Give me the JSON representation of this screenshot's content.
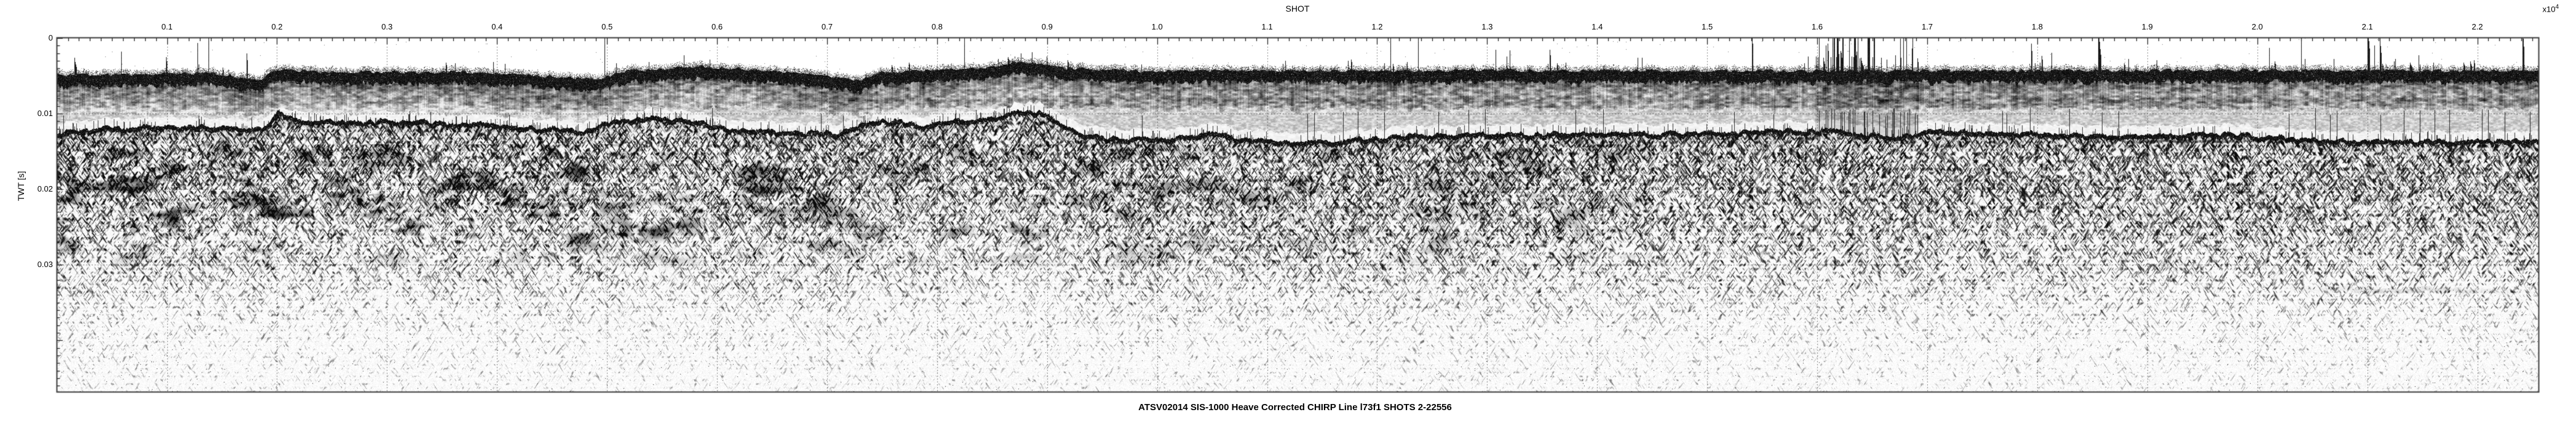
{
  "figure": {
    "title": "ATSV02014 SIS-1000 Heave Corrected CHIRP Line l73f1 SHOTS 2-22556",
    "x_axis": {
      "label": "SHOT",
      "multiplier_base": "x10",
      "multiplier_exponent": "4",
      "tick_labels": [
        "0.1",
        "0.2",
        "0.3",
        "0.4",
        "0.5",
        "0.6",
        "0.7",
        "0.8",
        "0.9",
        "1.0",
        "1.1",
        "1.2",
        "1.3",
        "1.4",
        "1.5",
        "1.6",
        "1.7",
        "1.8",
        "1.9",
        "2.0",
        "2.1",
        "2.2"
      ],
      "tick_values_e4": [
        0.1,
        0.2,
        0.3,
        0.4,
        0.5,
        0.6,
        0.7,
        0.8,
        0.9,
        1.0,
        1.1,
        1.2,
        1.3,
        1.4,
        1.5,
        1.6,
        1.7,
        1.8,
        1.9,
        2.0,
        2.1,
        2.2
      ],
      "minor_tick_step_e4": 0.01,
      "range_e4": [
        0.0002,
        2.2556
      ]
    },
    "y_axis": {
      "label": "TWT [s]",
      "tick_labels": [
        "0",
        "0.01",
        "0.02",
        "0.03"
      ],
      "tick_values_s": [
        0,
        0.01,
        0.02,
        0.03
      ],
      "minor_tick_step_s": 0.001,
      "range_s": [
        0,
        0.0468
      ]
    },
    "colors": {
      "background": "#ffffff",
      "ink": "#000000",
      "border": "#3c3c3c",
      "grid": "#606060"
    }
  },
  "chart_data": {
    "type": "heatmap",
    "kind": "sub-bottom-chirp-seismic-profile",
    "grayscale": true,
    "title": "ATSV02014 SIS-1000 Heave Corrected CHIRP Line l73f1 SHOTS 2-22556",
    "xlabel": "SHOT",
    "x_multiplier": "x10^4",
    "ylabel": "TWT [s]",
    "shot_range": [
      2,
      22556
    ],
    "x_range_e4": [
      0.0002,
      2.2556
    ],
    "y_range_s": [
      0,
      0.0468
    ],
    "grid": "dotted-at-major-ticks",
    "seafloor_reflector": {
      "shot_e4": [
        0.0,
        0.032,
        0.088,
        0.144,
        0.186,
        0.201,
        0.217,
        0.261,
        0.312,
        0.367,
        0.423,
        0.479,
        0.507,
        0.546,
        0.585,
        0.611,
        0.675,
        0.708,
        0.736,
        0.767,
        0.787,
        0.812,
        0.843,
        0.882,
        0.901,
        0.929,
        0.954,
        1.01,
        1.049,
        1.088,
        1.133,
        1.178,
        1.222,
        1.317,
        1.429,
        1.513,
        1.569,
        1.625,
        1.67,
        1.703,
        1.765,
        1.837,
        1.905,
        1.96,
        2.016,
        2.055,
        2.128,
        2.2,
        2.256
      ],
      "twt_s": [
        0.01259,
        0.01203,
        0.0117,
        0.01178,
        0.01211,
        0.00967,
        0.01089,
        0.01113,
        0.01105,
        0.0113,
        0.01186,
        0.01219,
        0.01089,
        0.01064,
        0.01097,
        0.01219,
        0.01251,
        0.01268,
        0.01113,
        0.01097,
        0.01154,
        0.01097,
        0.01073,
        0.00951,
        0.01024,
        0.01251,
        0.01333,
        0.01341,
        0.01259,
        0.01357,
        0.01373,
        0.01349,
        0.01292,
        0.01276,
        0.01268,
        0.01251,
        0.01219,
        0.01235,
        0.01316,
        0.01235,
        0.01243,
        0.01284,
        0.01292,
        0.01276,
        0.01308,
        0.01357,
        0.01365,
        0.01365,
        0.01357
      ]
    },
    "direct_arrival_band": {
      "shot_e4": [
        0.0,
        0.144,
        0.183,
        0.2,
        0.239,
        0.391,
        0.493,
        0.513,
        0.585,
        0.647,
        0.728,
        0.747,
        0.843,
        0.873,
        0.915,
        0.982,
        1.29,
        1.625,
        1.96,
        2.256
      ],
      "twt_s": [
        0.00487,
        0.00463,
        0.00569,
        0.00406,
        0.00447,
        0.00447,
        0.00552,
        0.00439,
        0.00374,
        0.00423,
        0.00561,
        0.00447,
        0.0039,
        0.00309,
        0.0039,
        0.00431,
        0.00423,
        0.00431,
        0.00423,
        0.00431
      ],
      "solid_thickness_s": 0.0014,
      "reverb_bottom_s": 0.0098
    },
    "noise_spike_zones": [
      {
        "x_e4": [
          1.598,
          1.692
        ],
        "intensity": "strong"
      },
      {
        "x_e4": [
          0.05,
          0.14
        ],
        "intensity": "mild"
      },
      {
        "x_e4": [
          0.545,
          0.605
        ],
        "intensity": "mild"
      },
      {
        "x_e4": [
          1.76,
          1.93
        ],
        "intensity": "mild"
      },
      {
        "x_e4": [
          2.0,
          2.25
        ],
        "intensity": "mild"
      }
    ],
    "sub_bottom_features": [
      {
        "name": "dipping-reflector",
        "x_e4": [
          1.199,
          1.252
        ],
        "twt_s": [
          0.0147,
          0.0218
        ]
      },
      {
        "name": "dipping-streak-left-a",
        "x_e4": [
          0.076,
          0.205
        ],
        "twt_s": [
          0.0168,
          0.0177
        ]
      },
      {
        "name": "dipping-streak-left-b",
        "x_e4": [
          0.026,
          0.104
        ],
        "twt_s": [
          0.0193,
          0.0203
        ]
      },
      {
        "name": "dipping-streak-mid",
        "x_e4": [
          0.227,
          0.34
        ],
        "twt_s": [
          0.0193,
          0.0218
        ]
      },
      {
        "name": "dipping-streak-right",
        "x_e4": [
          1.507,
          1.547
        ],
        "twt_s": [
          0.0153,
          0.0193
        ]
      },
      {
        "name": "sub-parallel-reflector",
        "x_e4": [
          1.828,
          2.048
        ],
        "twt_s": [
          0.01365,
          0.01368
        ]
      },
      {
        "name": "deep-smear-right",
        "x_e4": [
          2.02,
          2.25
        ],
        "twt_s": [
          0.0332,
          0.0336
        ]
      }
    ],
    "chaotic_scatter_zones": {
      "twt_s": [
        0.014,
        0.031
      ],
      "zones": [
        {
          "x_e4": [
            0.0,
            0.48
          ],
          "strength": 0.95
        },
        {
          "x_e4": [
            0.48,
            0.98
          ],
          "strength": 0.7
        },
        {
          "x_e4": [
            0.98,
            1.45
          ],
          "strength": 0.45
        }
      ]
    },
    "water_column_stripe": {
      "ranges_e4": [
        [
          0.0,
          0.39
        ],
        [
          0.39,
          0.78
        ],
        [
          0.78,
          2.256
        ]
      ],
      "strength": [
        0.25,
        0.55,
        0.85
      ]
    }
  }
}
